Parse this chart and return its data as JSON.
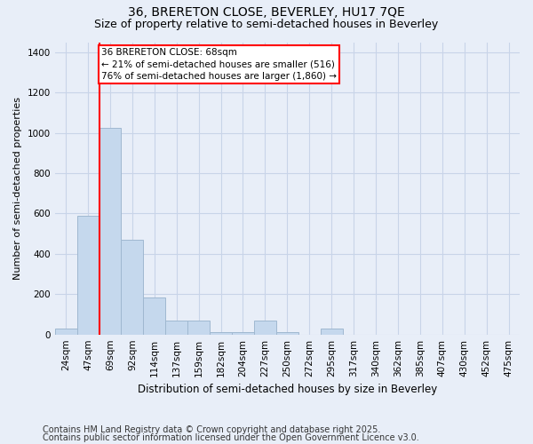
{
  "title_line1": "36, BRERETON CLOSE, BEVERLEY, HU17 7QE",
  "title_line2": "Size of property relative to semi-detached houses in Beverley",
  "xlabel": "Distribution of semi-detached houses by size in Beverley",
  "ylabel": "Number of semi-detached properties",
  "bin_labels": [
    "24sqm",
    "47sqm",
    "69sqm",
    "92sqm",
    "114sqm",
    "137sqm",
    "159sqm",
    "182sqm",
    "204sqm",
    "227sqm",
    "250sqm",
    "272sqm",
    "295sqm",
    "317sqm",
    "340sqm",
    "362sqm",
    "385sqm",
    "407sqm",
    "430sqm",
    "452sqm",
    "475sqm"
  ],
  "bar_values": [
    30,
    590,
    1025,
    470,
    185,
    70,
    70,
    10,
    10,
    70,
    10,
    0,
    30,
    0,
    0,
    0,
    0,
    0,
    0,
    0,
    0
  ],
  "bar_color": "#c5d8ed",
  "bar_edge_color": "#a0b8d0",
  "annotation_text": "36 BRERETON CLOSE: 68sqm\n← 21% of semi-detached houses are smaller (516)\n76% of semi-detached houses are larger (1,860) →",
  "annotation_box_color": "white",
  "annotation_box_edge_color": "red",
  "vline_color": "red",
  "ylim": [
    0,
    1450
  ],
  "yticks": [
    0,
    200,
    400,
    600,
    800,
    1000,
    1200,
    1400
  ],
  "grid_color": "#c8d4e8",
  "background_color": "#e8eef8",
  "footer_line1": "Contains HM Land Registry data © Crown copyright and database right 2025.",
  "footer_line2": "Contains public sector information licensed under the Open Government Licence v3.0.",
  "title_fontsize": 10,
  "subtitle_fontsize": 9,
  "axis_fontsize": 7.5,
  "footer_fontsize": 7
}
